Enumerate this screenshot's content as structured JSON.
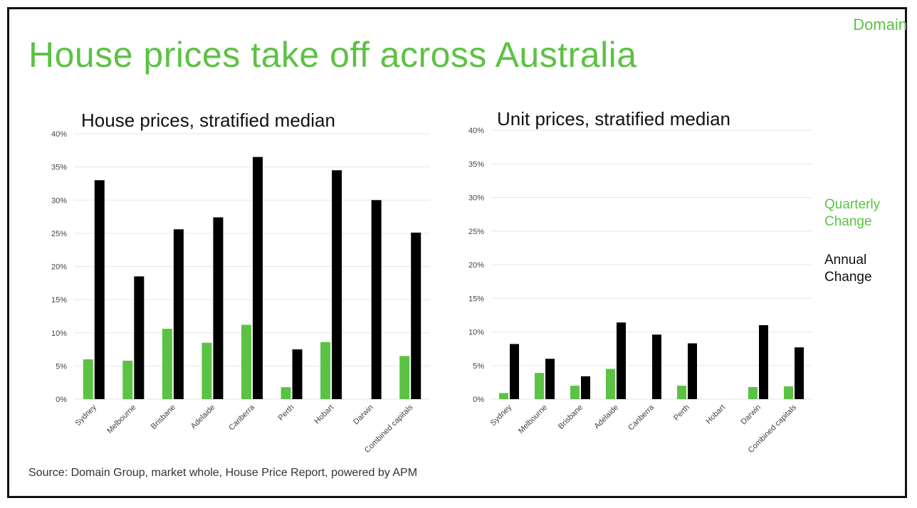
{
  "brand": "Domain",
  "title": "House prices take off across Australia",
  "source": "Source: Domain Group, market whole, House Price Report, powered by APM",
  "legend": {
    "quarterly": "Quarterly Change",
    "annual": "Annual Change"
  },
  "colors": {
    "quarterly": "#5cc243",
    "annual": "#000000"
  },
  "chart_data": [
    {
      "type": "bar",
      "title": "House prices, stratified median",
      "categories": [
        "Sydney",
        "Melbourne",
        "Brisbane",
        "Adelaide",
        "Canberra",
        "Perth",
        "Hobart",
        "Darwin",
        "Combined capitals"
      ],
      "series": [
        {
          "name": "Quarterly Change",
          "values": [
            6.0,
            5.8,
            10.6,
            8.5,
            11.2,
            1.8,
            8.6,
            null,
            6.5
          ]
        },
        {
          "name": "Annual Change",
          "values": [
            33.0,
            18.5,
            25.6,
            27.4,
            36.5,
            7.5,
            34.5,
            30.0,
            25.1
          ]
        }
      ],
      "yticks": [
        "0%",
        "5%",
        "10%",
        "15%",
        "20%",
        "25%",
        "30%",
        "35%",
        "40%"
      ],
      "ylim": [
        0,
        40
      ],
      "grid": true
    },
    {
      "type": "bar",
      "title": "Unit prices, stratified median",
      "categories": [
        "Sydney",
        "Melbourne",
        "Brisbane",
        "Adelaide",
        "Canberra",
        "Perth",
        "Hobart",
        "Darwin",
        "Combined capitals"
      ],
      "series": [
        {
          "name": "Quarterly Change",
          "values": [
            0.9,
            3.9,
            2.0,
            4.5,
            null,
            2.0,
            null,
            1.8,
            1.9
          ]
        },
        {
          "name": "Annual Change",
          "values": [
            8.2,
            6.0,
            3.4,
            11.4,
            9.6,
            8.3,
            null,
            11.0,
            7.7
          ]
        }
      ],
      "yticks": [
        "0%",
        "5%",
        "10%",
        "15%",
        "20%",
        "25%",
        "30%",
        "35%",
        "40%"
      ],
      "ylim": [
        0,
        40
      ],
      "grid": true
    }
  ]
}
